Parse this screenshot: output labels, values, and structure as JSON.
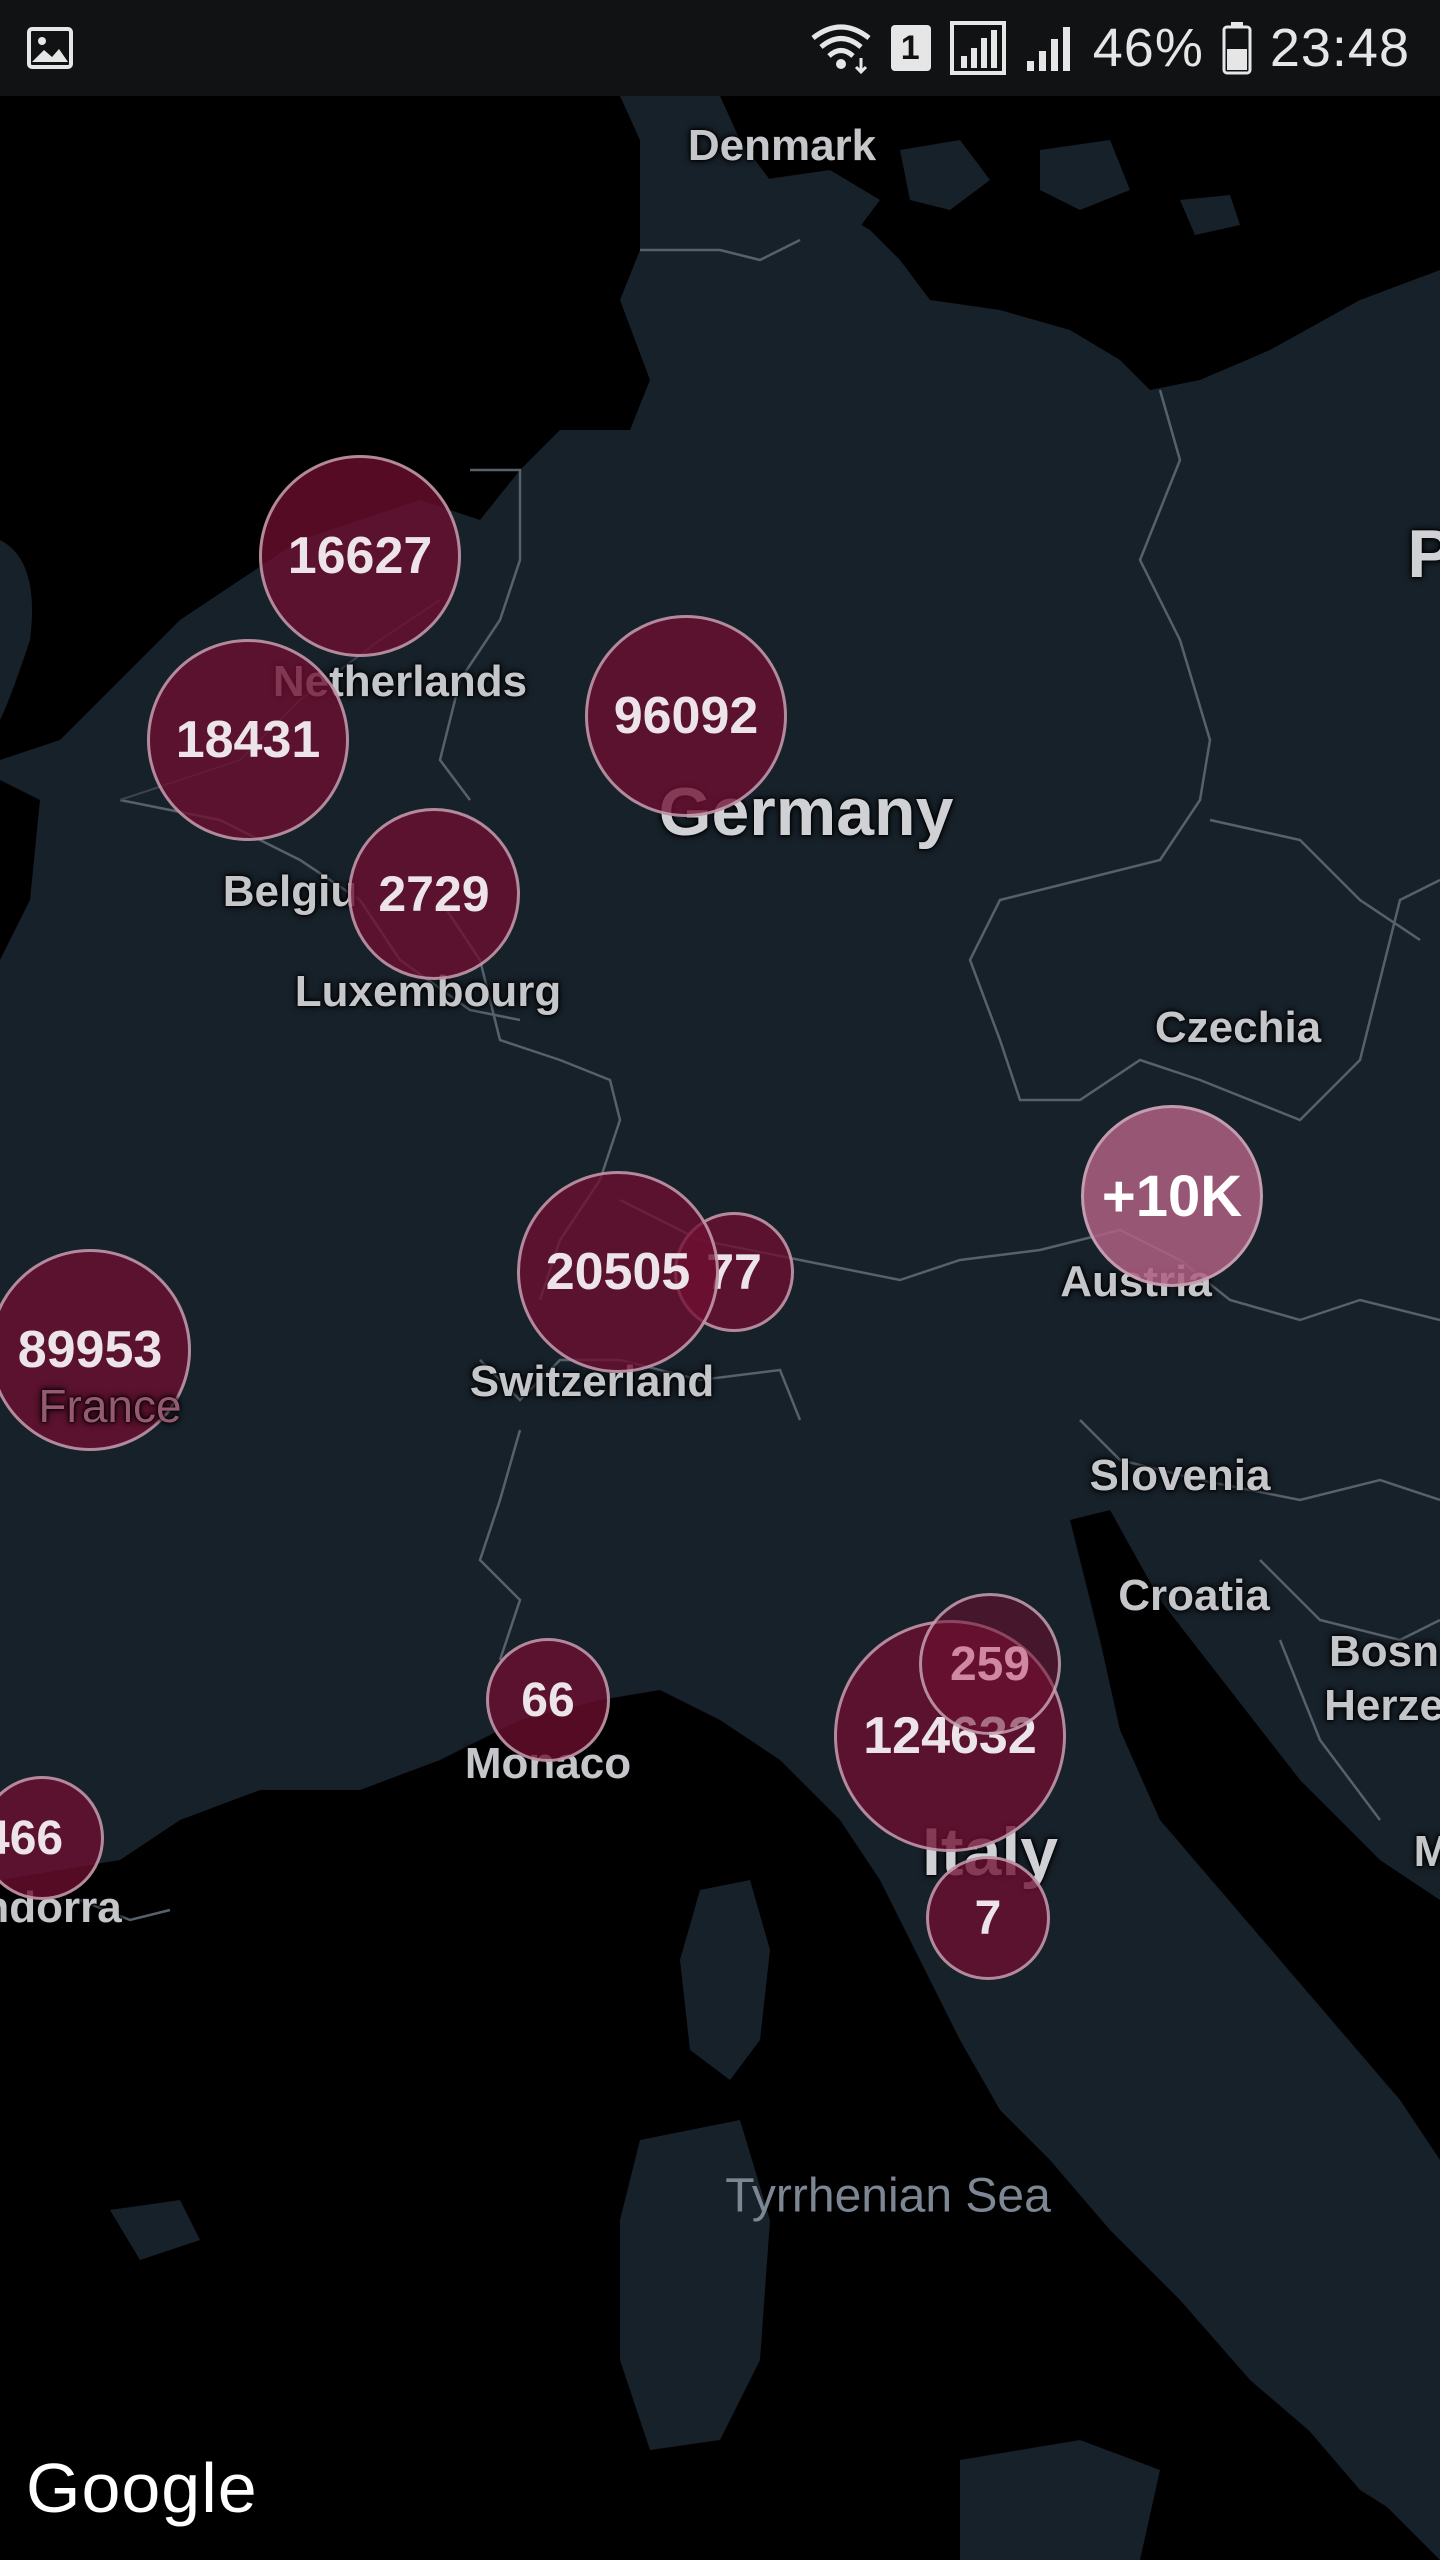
{
  "status_bar": {
    "sim_slot": "1",
    "battery": "46%",
    "time": "23:48",
    "icons": [
      "gallery-icon",
      "wifi-icon",
      "sim-icon",
      "signal-icon",
      "signal-icon",
      "battery-icon"
    ]
  },
  "map": {
    "provider_logo": "Google",
    "labels": {
      "denmark": "Denmark",
      "netherlands": "Netherlands",
      "germany": "Germany",
      "belgium": "Belgiu",
      "luxembourg": "Luxembourg",
      "czechia": "Czechia",
      "austria": "Austria",
      "switzerland": "Switzerland",
      "france": "France",
      "slovenia": "Slovenia",
      "croatia": "Croatia",
      "monaco": "Monaco",
      "andorra": "ndorra",
      "italy": "Italy",
      "bosnia_1": "Bosn",
      "bosnia_2": "Herze",
      "tyrrhenian_sea": "Tyrrhenian Sea",
      "edge_p": "P",
      "edge_m": "M"
    },
    "clusters": {
      "netherlands": "16627",
      "belgium": "18431",
      "germany": "96092",
      "luxembourg": "2729",
      "austria": "+10K",
      "switzerland": "20505",
      "liechtenstein": "77",
      "france": "89953",
      "monaco": "66",
      "san_marino": "259",
      "italy": "124632",
      "vatican": "7",
      "andorra": "466"
    }
  }
}
